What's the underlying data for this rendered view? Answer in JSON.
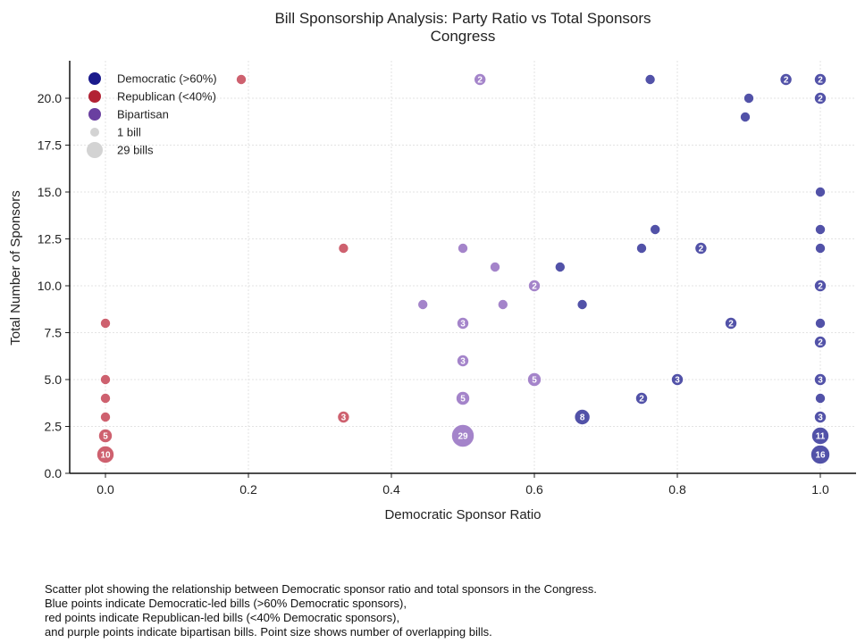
{
  "caption": [
    "Scatter plot showing the relationship between Democratic sponsor ratio and total sponsors in the Congress.",
    "Blue points indicate Democratic-led bills (>60% Democratic sponsors),",
    "red points indicate Republican-led bills (<40% Democratic sponsors),",
    "and purple points indicate bipartisan bills. Point size shows number of overlapping bills."
  ],
  "chart_data": {
    "type": "scatter",
    "title": "Bill Sponsorship Analysis: Party Ratio vs Total Sponsors",
    "subtitle": "Congress",
    "xlabel": "Democratic Sponsor Ratio",
    "ylabel": "Total Number of Sponsors",
    "xlim": [
      -0.05,
      1.05
    ],
    "ylim": [
      0,
      22
    ],
    "xticks": [
      "0.0",
      "0.2",
      "0.4",
      "0.6",
      "0.8",
      "1.0"
    ],
    "yticks": [
      "0.0",
      "2.5",
      "5.0",
      "7.5",
      "10.0",
      "12.5",
      "15.0",
      "17.5",
      "20.0"
    ],
    "grid": true,
    "legend_position": "top-left",
    "legend": [
      {
        "label": "Democratic (>60%)",
        "color": "#1a1a8c"
      },
      {
        "label": "Republican (<40%)",
        "color": "#b22234"
      },
      {
        "label": "Bipartisan",
        "color": "#6a3fa0"
      },
      {
        "label": "1 bill",
        "color": "#d3d3d3"
      },
      {
        "label": "29 bills",
        "color": "#d3d3d3"
      }
    ],
    "colors": {
      "democratic": "#3f3f9f",
      "republican": "#c9505f",
      "bipartisan": "#9a77c4",
      "size_legend": "#d3d3d3"
    },
    "series": [
      {
        "party": "republican",
        "points": [
          {
            "x": 0.0,
            "y": 1,
            "count": 10
          },
          {
            "x": 0.0,
            "y": 2,
            "count": 5
          },
          {
            "x": 0.0,
            "y": 3,
            "count": 1
          },
          {
            "x": 0.0,
            "y": 4,
            "count": 1
          },
          {
            "x": 0.0,
            "y": 5,
            "count": 1
          },
          {
            "x": 0.0,
            "y": 8,
            "count": 1
          },
          {
            "x": 0.19,
            "y": 21,
            "count": 1
          },
          {
            "x": 0.333,
            "y": 12,
            "count": 1
          },
          {
            "x": 0.333,
            "y": 3,
            "count": 3
          }
        ]
      },
      {
        "party": "bipartisan",
        "points": [
          {
            "x": 0.5,
            "y": 2,
            "count": 29
          },
          {
            "x": 0.5,
            "y": 4,
            "count": 5
          },
          {
            "x": 0.5,
            "y": 6,
            "count": 3
          },
          {
            "x": 0.5,
            "y": 8,
            "count": 3
          },
          {
            "x": 0.5,
            "y": 12,
            "count": 1
          },
          {
            "x": 0.444,
            "y": 9,
            "count": 1
          },
          {
            "x": 0.524,
            "y": 21,
            "count": 2
          },
          {
            "x": 0.545,
            "y": 11,
            "count": 1
          },
          {
            "x": 0.556,
            "y": 9,
            "count": 1
          },
          {
            "x": 0.6,
            "y": 10,
            "count": 2
          },
          {
            "x": 0.6,
            "y": 5,
            "count": 5
          }
        ]
      },
      {
        "party": "democratic",
        "points": [
          {
            "x": 0.636,
            "y": 11,
            "count": 1
          },
          {
            "x": 0.667,
            "y": 9,
            "count": 1
          },
          {
            "x": 0.667,
            "y": 3,
            "count": 8
          },
          {
            "x": 0.75,
            "y": 12,
            "count": 1
          },
          {
            "x": 0.75,
            "y": 4,
            "count": 2
          },
          {
            "x": 0.762,
            "y": 21,
            "count": 1
          },
          {
            "x": 0.769,
            "y": 13,
            "count": 1
          },
          {
            "x": 0.8,
            "y": 5,
            "count": 3
          },
          {
            "x": 0.833,
            "y": 12,
            "count": 2
          },
          {
            "x": 0.875,
            "y": 8,
            "count": 2
          },
          {
            "x": 0.895,
            "y": 19,
            "count": 1
          },
          {
            "x": 0.9,
            "y": 20,
            "count": 1
          },
          {
            "x": 0.952,
            "y": 21,
            "count": 2
          },
          {
            "x": 1.0,
            "y": 1,
            "count": 16
          },
          {
            "x": 1.0,
            "y": 2,
            "count": 11
          },
          {
            "x": 1.0,
            "y": 3,
            "count": 3
          },
          {
            "x": 1.0,
            "y": 4,
            "count": 1
          },
          {
            "x": 1.0,
            "y": 5,
            "count": 3
          },
          {
            "x": 1.0,
            "y": 7,
            "count": 2
          },
          {
            "x": 1.0,
            "y": 8,
            "count": 1
          },
          {
            "x": 1.0,
            "y": 10,
            "count": 2
          },
          {
            "x": 1.0,
            "y": 12,
            "count": 1
          },
          {
            "x": 1.0,
            "y": 13,
            "count": 1
          },
          {
            "x": 1.0,
            "y": 15,
            "count": 1
          },
          {
            "x": 1.0,
            "y": 20,
            "count": 2
          },
          {
            "x": 1.0,
            "y": 21,
            "count": 2
          }
        ]
      }
    ]
  }
}
